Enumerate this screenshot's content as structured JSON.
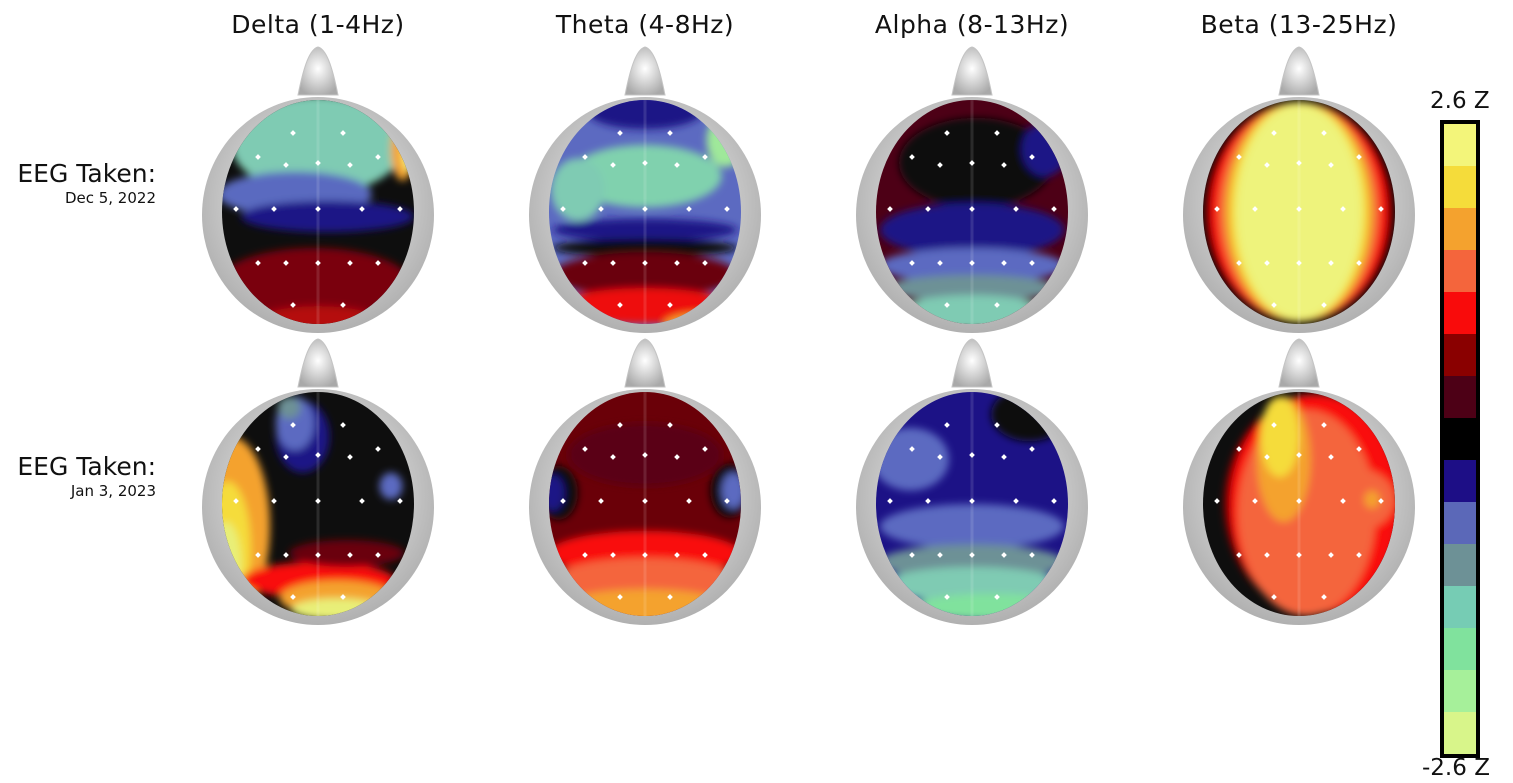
{
  "bands": [
    "Delta (1-4Hz)",
    "Theta (4-8Hz)",
    "Alpha (8-13Hz)",
    "Beta (13-25Hz)"
  ],
  "rows": [
    {
      "label": "EEG Taken:",
      "date": "Dec 5, 2022"
    },
    {
      "label": "EEG Taken:",
      "date": "Jan 3, 2023"
    }
  ],
  "colorbar": {
    "max_label": "2.6 Z",
    "min_label": "-2.6 Z",
    "colors_top_to_bottom": [
      "#f3f57a",
      "#f5dc3a",
      "#f4a22e",
      "#f4653c",
      "#f90b0b",
      "#8a0000",
      "#4d0016",
      "#000000",
      "#1d0e86",
      "#5b68b8",
      "#6d9196",
      "#76ccb4",
      "#80e29d",
      "#a6f09a",
      "#d8f58a"
    ]
  },
  "maps": [
    [
      {
        "base": "#0e0e0e",
        "blobs": [
          {
            "c": "#7fcbb3",
            "cx": 50,
            "cy": 20,
            "rx": 45,
            "ry": 22
          },
          {
            "c": "#5a6ac0",
            "cx": 38,
            "cy": 42,
            "rx": 40,
            "ry": 10
          },
          {
            "c": "#1c1286",
            "cx": 55,
            "cy": 52,
            "rx": 45,
            "ry": 7
          },
          {
            "c": "#7a0008",
            "cx": 48,
            "cy": 82,
            "rx": 50,
            "ry": 16
          },
          {
            "c": "#b50c0c",
            "cx": 50,
            "cy": 98,
            "rx": 30,
            "ry": 6
          },
          {
            "c": "#f4a22e",
            "cx": 94,
            "cy": 22,
            "rx": 6,
            "ry": 14
          },
          {
            "c": "#f3f57a",
            "cx": 97,
            "cy": 24,
            "rx": 3,
            "ry": 8
          }
        ]
      },
      {
        "base": "#5c6ac1",
        "blobs": [
          {
            "c": "#1c1286",
            "cx": 50,
            "cy": 5,
            "rx": 30,
            "ry": 8
          },
          {
            "c": "#80d1ae",
            "cx": 50,
            "cy": 34,
            "rx": 40,
            "ry": 14
          },
          {
            "c": "#7fcbb3",
            "cx": 15,
            "cy": 40,
            "rx": 14,
            "ry": 14
          },
          {
            "c": "#9fe89a",
            "cx": 92,
            "cy": 18,
            "rx": 10,
            "ry": 12
          },
          {
            "c": "#1c1286",
            "cx": 50,
            "cy": 58,
            "rx": 48,
            "ry": 5
          },
          {
            "c": "#0e0e0e",
            "cx": 50,
            "cy": 66,
            "rx": 48,
            "ry": 4
          },
          {
            "c": "#6a0008",
            "cx": 50,
            "cy": 78,
            "rx": 48,
            "ry": 10
          },
          {
            "c": "#ee1010",
            "cx": 50,
            "cy": 92,
            "rx": 45,
            "ry": 8
          },
          {
            "c": "#f4a22e",
            "cx": 80,
            "cy": 100,
            "rx": 20,
            "ry": 5
          }
        ]
      },
      {
        "base": "#4d0016",
        "blobs": [
          {
            "c": "#0e0e0e",
            "cx": 52,
            "cy": 28,
            "rx": 40,
            "ry": 20
          },
          {
            "c": "#1c1286",
            "cx": 88,
            "cy": 22,
            "rx": 12,
            "ry": 12
          },
          {
            "c": "#1c1286",
            "cx": 50,
            "cy": 58,
            "rx": 48,
            "ry": 12
          },
          {
            "c": "#5c6ac1",
            "cx": 50,
            "cy": 74,
            "rx": 48,
            "ry": 8
          },
          {
            "c": "#6d9196",
            "cx": 50,
            "cy": 84,
            "rx": 45,
            "ry": 6
          },
          {
            "c": "#7fcbb3",
            "cx": 50,
            "cy": 95,
            "rx": 40,
            "ry": 8
          }
        ]
      },
      {
        "base": "#0e0e0e",
        "blobs": [
          {
            "c": "#8a0000",
            "cx": 50,
            "cy": 50,
            "rx": 49,
            "ry": 49
          },
          {
            "c": "#f90b0b",
            "cx": 50,
            "cy": 50,
            "rx": 46,
            "ry": 49
          },
          {
            "c": "#f4653c",
            "cx": 50,
            "cy": 50,
            "rx": 42,
            "ry": 49
          },
          {
            "c": "#f4a22e",
            "cx": 50,
            "cy": 50,
            "rx": 39,
            "ry": 49
          },
          {
            "c": "#f5dc3a",
            "cx": 50,
            "cy": 50,
            "rx": 36,
            "ry": 49
          },
          {
            "c": "#eef37c",
            "cx": 50,
            "cy": 50,
            "rx": 33,
            "ry": 48
          }
        ]
      }
    ],
    [
      {
        "base": "#0e0e0e",
        "blobs": [
          {
            "c": "#f4a22e",
            "cx": 5,
            "cy": 60,
            "rx": 20,
            "ry": 40
          },
          {
            "c": "#f5dc3a",
            "cx": 3,
            "cy": 70,
            "rx": 12,
            "ry": 30
          },
          {
            "c": "#e8ef78",
            "cx": 2,
            "cy": 78,
            "rx": 8,
            "ry": 20
          },
          {
            "c": "#f90b0b",
            "cx": 50,
            "cy": 84,
            "rx": 40,
            "ry": 8
          },
          {
            "c": "#f4a22e",
            "cx": 60,
            "cy": 92,
            "rx": 30,
            "ry": 8
          },
          {
            "c": "#e8ef78",
            "cx": 60,
            "cy": 97,
            "rx": 24,
            "ry": 5
          },
          {
            "c": "#6a0008",
            "cx": 65,
            "cy": 72,
            "rx": 30,
            "ry": 6
          },
          {
            "c": "#1c1286",
            "cx": 42,
            "cy": 20,
            "rx": 14,
            "ry": 16
          },
          {
            "c": "#5c6ac1",
            "cx": 38,
            "cy": 14,
            "rx": 10,
            "ry": 12
          },
          {
            "c": "#6d9196",
            "cx": 35,
            "cy": 7,
            "rx": 6,
            "ry": 5
          },
          {
            "c": "#5c6ac1",
            "cx": 88,
            "cy": 42,
            "rx": 6,
            "ry": 6
          }
        ]
      },
      {
        "base": "#6a0008",
        "blobs": [
          {
            "c": "#5a0012",
            "cx": 50,
            "cy": 28,
            "rx": 40,
            "ry": 14
          },
          {
            "c": "#0e0e0e",
            "cx": 5,
            "cy": 45,
            "rx": 10,
            "ry": 12
          },
          {
            "c": "#1c1286",
            "cx": 2,
            "cy": 45,
            "rx": 6,
            "ry": 8
          },
          {
            "c": "#0e0e0e",
            "cx": 94,
            "cy": 44,
            "rx": 10,
            "ry": 12
          },
          {
            "c": "#5c6ac1",
            "cx": 96,
            "cy": 44,
            "rx": 6,
            "ry": 8
          },
          {
            "c": "#f90b0b",
            "cx": 50,
            "cy": 72,
            "rx": 50,
            "ry": 10
          },
          {
            "c": "#f4653c",
            "cx": 50,
            "cy": 84,
            "rx": 48,
            "ry": 10
          },
          {
            "c": "#f4a22e",
            "cx": 50,
            "cy": 96,
            "rx": 44,
            "ry": 8
          }
        ]
      },
      {
        "base": "#1c1286",
        "blobs": [
          {
            "c": "#0e0e0e",
            "cx": 80,
            "cy": 10,
            "rx": 20,
            "ry": 12
          },
          {
            "c": "#5c6ac1",
            "cx": 18,
            "cy": 30,
            "rx": 20,
            "ry": 14
          },
          {
            "c": "#5c6ac1",
            "cx": 50,
            "cy": 60,
            "rx": 48,
            "ry": 10
          },
          {
            "c": "#6d9196",
            "cx": 50,
            "cy": 76,
            "rx": 48,
            "ry": 8
          },
          {
            "c": "#7fcbb3",
            "cx": 50,
            "cy": 86,
            "rx": 46,
            "ry": 8
          },
          {
            "c": "#80e29d",
            "cx": 60,
            "cy": 96,
            "rx": 40,
            "ry": 6
          }
        ]
      },
      {
        "base": "#0e0e0e",
        "blobs": [
          {
            "c": "#8a0000",
            "cx": 60,
            "cy": 50,
            "rx": 49,
            "ry": 49
          },
          {
            "c": "#f90b0b",
            "cx": 58,
            "cy": 50,
            "rx": 44,
            "ry": 49
          },
          {
            "c": "#f4653c",
            "cx": 54,
            "cy": 54,
            "rx": 36,
            "ry": 46
          },
          {
            "c": "#f4653c",
            "cx": 80,
            "cy": 48,
            "rx": 20,
            "ry": 14
          },
          {
            "c": "#f4a22e",
            "cx": 42,
            "cy": 30,
            "rx": 14,
            "ry": 28
          },
          {
            "c": "#f5dc3a",
            "cx": 40,
            "cy": 20,
            "rx": 10,
            "ry": 18
          },
          {
            "c": "#f4a22e",
            "cx": 88,
            "cy": 48,
            "rx": 4,
            "ry": 4
          }
        ]
      }
    ]
  ]
}
